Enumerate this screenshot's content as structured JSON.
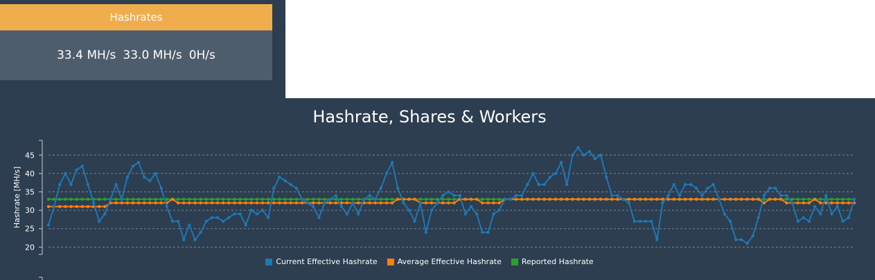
{
  "panel": {
    "title": "Hashrates",
    "values": [
      "33.4 MH/s",
      "33.0 MH/s",
      "0H/s"
    ]
  },
  "chart_data": {
    "type": "line",
    "title": "Hashrate, Shares & Workers",
    "ylabel": "Hashrate [MH/s]",
    "xlabel": "",
    "ylim": [
      18,
      49
    ],
    "yticks": [
      20,
      25,
      30,
      35,
      40,
      45
    ],
    "grid": true,
    "legend_position": "bottom",
    "series": [
      {
        "name": "Current Effective Hashrate",
        "color": "#1f77b4",
        "values": [
          26,
          31,
          37,
          40,
          37,
          41,
          42,
          37,
          32,
          27,
          29,
          33,
          37,
          33,
          39,
          42,
          43,
          39,
          38,
          40,
          36,
          31,
          27,
          27,
          22,
          26,
          22,
          24,
          27,
          28,
          28,
          27,
          28,
          29,
          29,
          26,
          30,
          29,
          30,
          28,
          36,
          39,
          38,
          37,
          36,
          33,
          32,
          31,
          28,
          32,
          33,
          34,
          31,
          29,
          32,
          29,
          33,
          34,
          33,
          36,
          40,
          43,
          36,
          32,
          30,
          27,
          32,
          24,
          30,
          32,
          34,
          35,
          34,
          34,
          29,
          31,
          29,
          24,
          24,
          29,
          30,
          33,
          33,
          34,
          34,
          37,
          40,
          37,
          37,
          39,
          40,
          43,
          37,
          45,
          47,
          45,
          46,
          44,
          45,
          39,
          34,
          34,
          33,
          32,
          27,
          27,
          27,
          27,
          22,
          32,
          34,
          37,
          34,
          37,
          37,
          36,
          34,
          36,
          37,
          33,
          29,
          27,
          22,
          22,
          21,
          23,
          28,
          34,
          36,
          36,
          34,
          34,
          32,
          27,
          28,
          27,
          31,
          29,
          34,
          29,
          31,
          27,
          28,
          33
        ]
      },
      {
        "name": "Average Effective Hashrate",
        "color": "#ff7f0e",
        "values": [
          31,
          31,
          31,
          31,
          31,
          31,
          31,
          31,
          31,
          31,
          31,
          32,
          32,
          32,
          32,
          32,
          32,
          32,
          32,
          32,
          32,
          32,
          33,
          32,
          32,
          32,
          32,
          32,
          32,
          32,
          32,
          32,
          32,
          32,
          32,
          32,
          32,
          32,
          32,
          32,
          32,
          32,
          32,
          32,
          32,
          32,
          32,
          32,
          32,
          32,
          32,
          32,
          32,
          32,
          32,
          32,
          32,
          32,
          32,
          32,
          32,
          32,
          33,
          33,
          33,
          33,
          32,
          32,
          32,
          32,
          32,
          32,
          32,
          33,
          33,
          33,
          33,
          32,
          32,
          32,
          32,
          33,
          33,
          33,
          33,
          33,
          33,
          33,
          33,
          33,
          33,
          33,
          33,
          33,
          33,
          33,
          33,
          33,
          33,
          33,
          33,
          33,
          33,
          33,
          33,
          33,
          33,
          33,
          33,
          33,
          33,
          33,
          33,
          33,
          33,
          33,
          33,
          33,
          33,
          33,
          33,
          33,
          33,
          33,
          33,
          33,
          33,
          32,
          33,
          33,
          33,
          32,
          32,
          32,
          32,
          32,
          33,
          32,
          32,
          32,
          32,
          32,
          32,
          32
        ]
      },
      {
        "name": "Reported Hashrate",
        "color": "#2ca02c",
        "values": [
          33,
          33,
          33,
          33,
          33,
          33,
          33,
          33,
          33,
          33,
          33,
          33,
          33,
          33,
          33,
          33,
          33,
          33,
          33,
          33,
          33,
          33,
          33,
          33,
          33,
          33,
          33,
          33,
          33,
          33,
          33,
          33,
          33,
          33,
          33,
          33,
          33,
          33,
          33,
          33,
          33,
          33,
          33,
          33,
          33,
          33,
          33,
          33,
          33,
          33,
          33,
          33,
          33,
          33,
          33,
          33,
          33,
          33,
          33,
          33,
          33,
          33,
          33,
          33,
          33,
          33,
          33,
          33,
          33,
          33,
          33,
          33,
          33,
          33,
          33,
          33,
          33,
          33,
          33,
          33,
          33,
          33,
          33,
          33,
          33,
          33,
          33,
          33,
          33,
          33,
          33,
          33,
          33,
          33,
          33,
          33,
          33,
          33,
          33,
          33,
          33,
          33,
          33,
          33,
          33,
          33,
          33,
          33,
          33,
          33,
          33,
          33,
          33,
          33,
          33,
          33,
          33,
          33,
          33,
          33,
          33,
          33,
          33,
          33,
          33,
          33,
          33,
          33,
          33,
          33,
          33,
          33,
          33,
          33,
          33,
          33,
          33,
          33,
          33,
          33,
          33,
          33,
          33,
          33
        ]
      }
    ]
  }
}
